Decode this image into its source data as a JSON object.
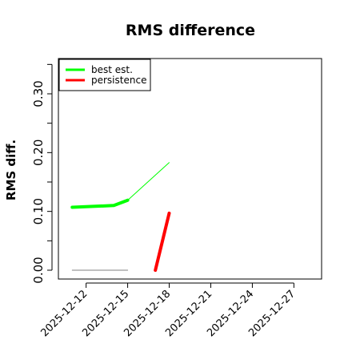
{
  "chart_data": {
    "type": "line",
    "title": "RMS difference",
    "xlabel": "",
    "ylabel": "RMS diff.",
    "xlim": [
      "2025-12-10",
      "2025-12-29"
    ],
    "ylim": [
      -0.015,
      0.36
    ],
    "yticks": [
      {
        "value": 0.0,
        "label": "0.00"
      },
      {
        "value": 0.1,
        "label": "0.10"
      },
      {
        "value": 0.2,
        "label": "0.20"
      },
      {
        "value": 0.3,
        "label": "0.30"
      }
    ],
    "yminor_ticks": [
      0.05,
      0.15,
      0.25,
      0.35
    ],
    "xticks": [
      {
        "date": "2025-12-12",
        "label": "2025-12-12"
      },
      {
        "date": "2025-12-15",
        "label": "2025-12-15"
      },
      {
        "date": "2025-12-18",
        "label": "2025-12-18"
      },
      {
        "date": "2025-12-21",
        "label": "2025-12-21"
      },
      {
        "date": "2025-12-24",
        "label": "2025-12-24"
      },
      {
        "date": "2025-12-27",
        "label": "2025-12-27"
      }
    ],
    "grid": false,
    "legend_position": "top-left",
    "series": [
      {
        "name": "best est.",
        "color": "#00ff00",
        "style": "thick",
        "points": [
          {
            "x": "2025-12-11",
            "y": 0.107
          },
          {
            "x": "2025-12-14",
            "y": 0.11
          },
          {
            "x": "2025-12-15",
            "y": 0.119
          }
        ]
      },
      {
        "name": "",
        "color": "#00ff00",
        "style": "thin",
        "points": [
          {
            "x": "2025-12-15",
            "y": 0.119
          },
          {
            "x": "2025-12-18",
            "y": 0.183
          }
        ]
      },
      {
        "name": "persistence",
        "color": "#ff0000",
        "style": "thick",
        "points": [
          {
            "x": "2025-12-17",
            "y": 0.0
          },
          {
            "x": "2025-12-18",
            "y": 0.097
          }
        ]
      },
      {
        "name": "",
        "color": "#808080",
        "style": "thin",
        "points": [
          {
            "x": "2025-12-11",
            "y": 0.0
          },
          {
            "x": "2025-12-15",
            "y": 0.0
          }
        ]
      }
    ]
  }
}
